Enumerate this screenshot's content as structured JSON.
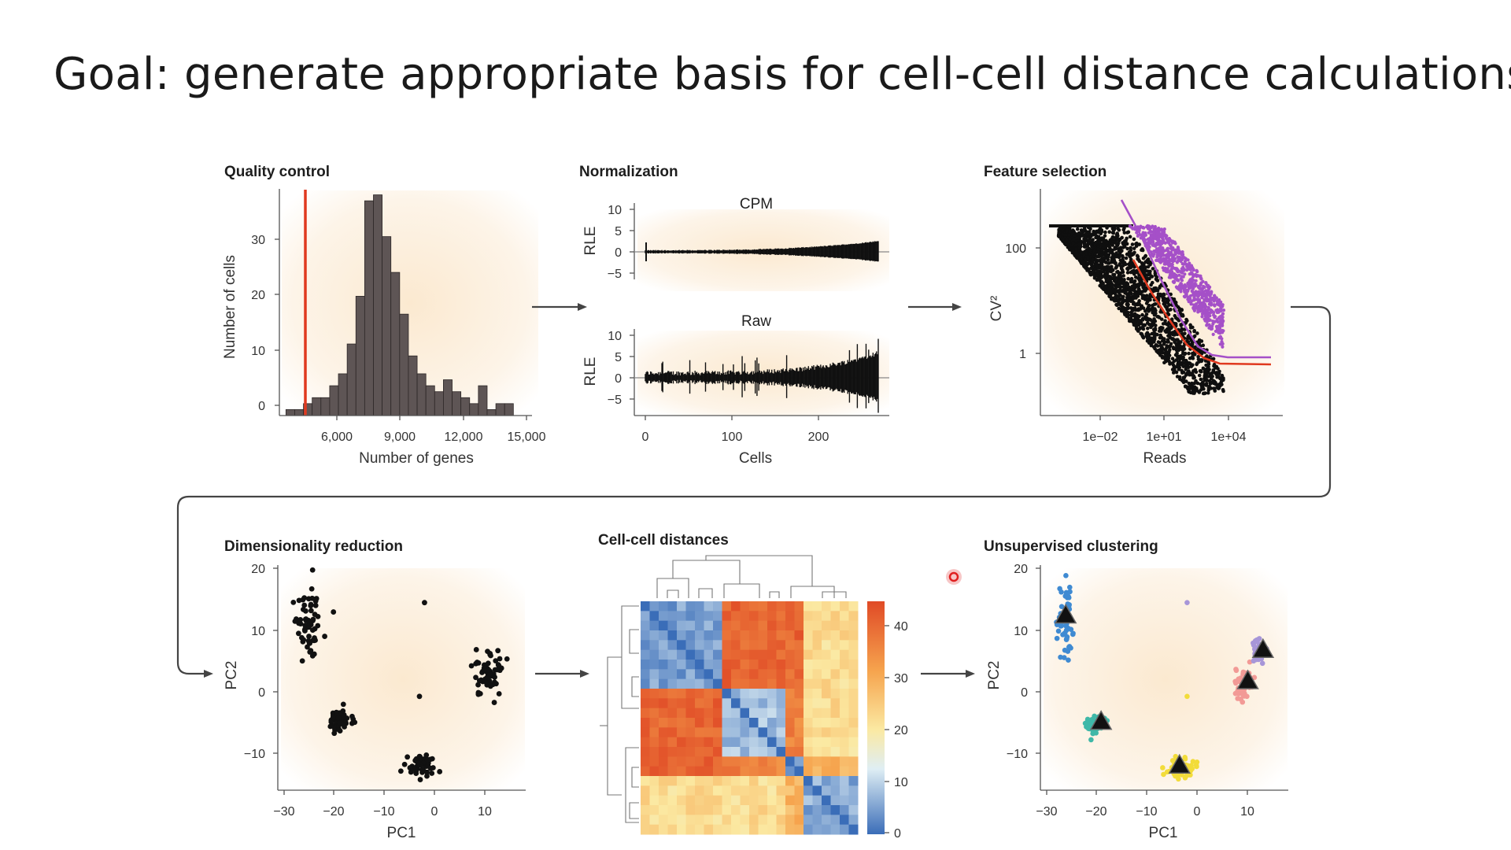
{
  "slide": {
    "title": "Goal: generate appropriate basis for cell-cell distance calculations"
  },
  "panels": {
    "qc": {
      "title": "Quality control",
      "xlabel": "Number of genes",
      "ylabel": "Number of cells",
      "xticks": [
        "6,000",
        "9,000",
        "12,000",
        "15,000"
      ],
      "yticks": [
        "0",
        "10",
        "20",
        "30"
      ]
    },
    "norm": {
      "title": "Normalization",
      "top_label": "CPM",
      "bottom_label": "Raw",
      "ylabel": "RLE",
      "yticks": [
        "10",
        "5",
        "0",
        "−5"
      ],
      "xticks": [
        "0",
        "100",
        "200"
      ],
      "xlabel": "Cells"
    },
    "fs": {
      "title": "Feature selection",
      "ylabel": "CV²",
      "yticks": [
        "100",
        "1"
      ],
      "xticks": [
        "1e−02",
        "1e+01",
        "1e+04"
      ],
      "xlabel": "Reads"
    },
    "dr": {
      "title": "Dimensionality reduction",
      "xlabel": "PC1",
      "ylabel": "PC2",
      "xticks": [
        "−30",
        "−20",
        "−10",
        "0",
        "10"
      ],
      "yticks": [
        "20",
        "10",
        "0",
        "−10"
      ]
    },
    "dist": {
      "title": "Cell-cell distances",
      "colorbar_ticks": [
        "40",
        "30",
        "20",
        "10",
        "0"
      ]
    },
    "uc": {
      "title": "Unsupervised clustering",
      "xlabel": "PC1",
      "ylabel": "PC2",
      "xticks": [
        "−30",
        "−20",
        "−10",
        "0",
        "10"
      ],
      "yticks": [
        "20",
        "10",
        "0",
        "−10"
      ]
    }
  },
  "colors": {
    "bar_fill": "#5e5555",
    "qc_threshold": "#e0391f",
    "highlight": "#a550c8",
    "fit_red": "#e0391f",
    "cluster_blue": "#3f8ad2",
    "cluster_teal": "#3fb8a8",
    "cluster_yellow": "#f2dc3a",
    "cluster_salmon": "#f29a96",
    "cluster_lavender": "#a796d8",
    "heat_low": "#3a6db8",
    "heat_high": "#e8552e",
    "cursor": "#e02020"
  },
  "chart_data": [
    {
      "type": "bar",
      "title": "Quality control",
      "xlabel": "Number of genes",
      "ylabel": "Number of cells",
      "xlim": [
        3700,
        15000
      ],
      "ylim": [
        0,
        38
      ],
      "bin_start": 4000,
      "bin_width": 400,
      "values": [
        1,
        1,
        2,
        3,
        3,
        5,
        7,
        12,
        20,
        36,
        37,
        30,
        24,
        17,
        10,
        7,
        5,
        4,
        6,
        4,
        3,
        2,
        5,
        1,
        2,
        2
      ]
    },
    {
      "type": "scatter",
      "title": "Dimensionality reduction",
      "xlabel": "PC1",
      "ylabel": "PC2",
      "xlim": [
        -31,
        18
      ],
      "ylim": [
        -15,
        21
      ],
      "clusters": [
        {
          "center": [
            -25,
            12
          ],
          "spread": [
            2.0,
            6.5
          ]
        },
        {
          "center": [
            -19,
            -4
          ],
          "spread": [
            2.0,
            1.3
          ]
        },
        {
          "center": [
            -3,
            -11
          ],
          "spread": [
            2.5,
            1.5
          ]
        },
        {
          "center": [
            11,
            4
          ],
          "spread": [
            2.4,
            3.6
          ]
        }
      ],
      "outliers": [
        [
          -20,
          13.5
        ],
        [
          -2,
          15
        ],
        [
          -3,
          0
        ]
      ]
    },
    {
      "type": "scatter",
      "title": "Unsupervised clustering",
      "xlabel": "PC1",
      "ylabel": "PC2",
      "xlim": [
        -31,
        18
      ],
      "ylim": [
        -15,
        21
      ],
      "clusters": [
        {
          "center": [
            -26,
            12
          ],
          "spread": [
            1.7,
            6.5
          ],
          "centroid": [
            -26,
            13
          ],
          "color": "cluster_blue"
        },
        {
          "center": [
            -20,
            -4.5
          ],
          "spread": [
            1.6,
            1.3
          ],
          "centroid": [
            -19,
            -4
          ],
          "color": "cluster_teal"
        },
        {
          "center": [
            -3,
            -11.5
          ],
          "spread": [
            2.7,
            1.5
          ],
          "centroid": [
            -3.5,
            -11
          ],
          "color": "cluster_yellow"
        },
        {
          "center": [
            9,
            1.5
          ],
          "spread": [
            1.8,
            2.2
          ],
          "centroid": [
            10,
            2.5
          ],
          "color": "cluster_salmon"
        },
        {
          "center": [
            12,
            7.5
          ],
          "spread": [
            1.5,
            1.8
          ],
          "centroid": [
            13,
            7.5
          ],
          "color": "cluster_lavender"
        }
      ],
      "outliers": [
        [
          -2,
          15,
          "cluster_lavender"
        ],
        [
          -2,
          0,
          "cluster_yellow"
        ]
      ]
    },
    {
      "type": "heatmap",
      "title": "Cell-cell distances",
      "clim": [
        0,
        44
      ],
      "groups": [
        9,
        7,
        2,
        6
      ],
      "distance_matrix": [
        [
          5,
          40,
          40,
          22
        ],
        [
          40,
          8,
          36,
          22
        ],
        [
          40,
          36,
          6,
          28
        ],
        [
          22,
          22,
          28,
          6
        ]
      ]
    }
  ]
}
